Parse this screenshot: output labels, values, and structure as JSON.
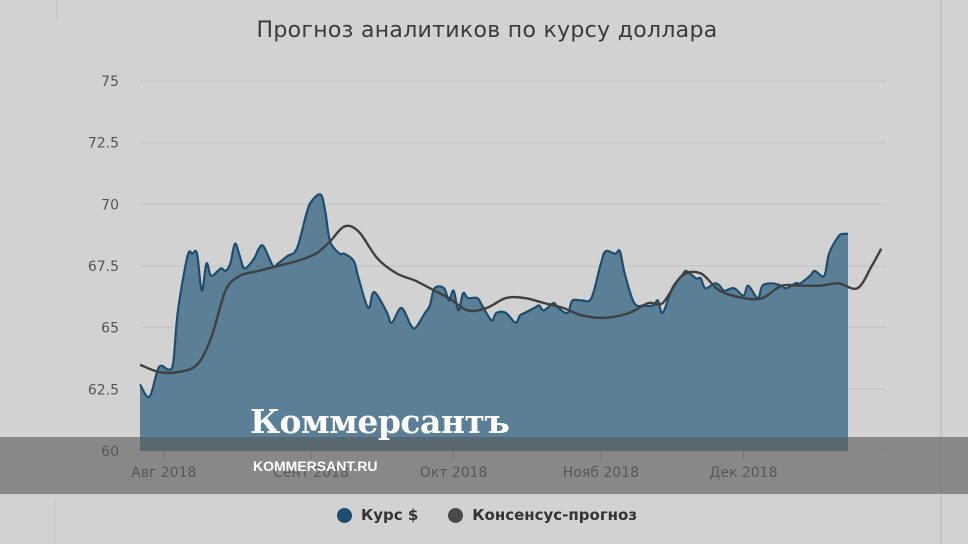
{
  "title": "Прогноз аналитиков по курсу доллара",
  "watermark": {
    "logo": "Коммерсантъ",
    "url": "KOMMERSANT.RU"
  },
  "colors": {
    "area_fill": "#5a7f97",
    "area_line": "#1e4d6e",
    "consensus_line": "#404040",
    "grid": "#c2c2c2",
    "axis_text": "#555555"
  },
  "legend": [
    {
      "label": "Курс $",
      "color": "#1e4d6e"
    },
    {
      "label": "Консенсус-прогноз",
      "color": "#4a4a4a"
    }
  ],
  "chart_data": {
    "type": "area",
    "title": "Прогноз аналитиков по курсу доллара",
    "ylim": [
      60,
      75
    ],
    "xlim": [
      "2018-07-27",
      "2018-12-31"
    ],
    "yticks": [
      60,
      62.5,
      65,
      67.5,
      70,
      72.5,
      75
    ],
    "ytick_labels": [
      "60",
      "62.5",
      "65",
      "67.5",
      "70",
      "72.5",
      "75"
    ],
    "xticks": [
      {
        "date": "2018-08-01",
        "label": "Авг 2018"
      },
      {
        "date": "2018-09-01",
        "label": "Сент 2018"
      },
      {
        "date": "2018-10-01",
        "label": "Окт 2018"
      },
      {
        "date": "2018-11-01",
        "label": "Нояб 2018"
      },
      {
        "date": "2018-12-01",
        "label": "Дек 2018"
      }
    ],
    "grid": true,
    "legend_position": "bottom",
    "series": [
      {
        "name": "Курс $",
        "type": "area",
        "x": [
          "2018-07-27",
          "2018-07-29",
          "2018-07-31",
          "2018-08-02",
          "2018-08-03",
          "2018-08-04",
          "2018-08-06",
          "2018-08-07",
          "2018-08-08",
          "2018-08-09",
          "2018-08-10",
          "2018-08-11",
          "2018-08-13",
          "2018-08-14",
          "2018-08-15",
          "2018-08-16",
          "2018-08-17",
          "2018-08-18",
          "2018-08-20",
          "2018-08-21",
          "2018-08-22",
          "2018-08-24",
          "2018-08-25",
          "2018-08-27",
          "2018-08-29",
          "2018-08-31",
          "2018-09-01",
          "2018-09-03",
          "2018-09-04",
          "2018-09-05",
          "2018-09-07",
          "2018-09-08",
          "2018-09-10",
          "2018-09-11",
          "2018-09-13",
          "2018-09-14",
          "2018-09-15",
          "2018-09-17",
          "2018-09-18",
          "2018-09-20",
          "2018-09-22",
          "2018-09-23",
          "2018-09-25",
          "2018-09-26",
          "2018-09-27",
          "2018-09-29",
          "2018-09-30",
          "2018-10-01",
          "2018-10-02",
          "2018-10-03",
          "2018-10-04",
          "2018-10-06",
          "2018-10-07",
          "2018-10-09",
          "2018-10-10",
          "2018-10-12",
          "2018-10-14",
          "2018-10-15",
          "2018-10-16",
          "2018-10-18",
          "2018-10-19",
          "2018-10-20",
          "2018-10-22",
          "2018-10-23",
          "2018-10-25",
          "2018-10-26",
          "2018-10-28",
          "2018-10-30",
          "2018-11-01",
          "2018-11-02",
          "2018-11-04",
          "2018-11-05",
          "2018-11-06",
          "2018-11-08",
          "2018-11-10",
          "2018-11-12",
          "2018-11-13",
          "2018-11-14",
          "2018-11-16",
          "2018-11-18",
          "2018-11-19",
          "2018-11-21",
          "2018-11-22",
          "2018-11-23",
          "2018-11-25",
          "2018-11-26",
          "2018-11-27",
          "2018-11-29",
          "2018-12-01",
          "2018-12-02",
          "2018-12-04",
          "2018-12-05",
          "2018-12-07",
          "2018-12-09",
          "2018-12-10",
          "2018-12-12",
          "2018-12-13",
          "2018-12-15",
          "2018-12-16",
          "2018-12-18",
          "2018-12-19",
          "2018-12-21",
          "2018-12-22",
          "2018-12-23"
        ],
        "values": [
          62.7,
          62.2,
          63.4,
          63.3,
          63.6,
          65.7,
          67.9,
          68.0,
          68.0,
          66.5,
          67.6,
          67.1,
          67.4,
          67.3,
          67.6,
          68.4,
          67.9,
          67.4,
          67.8,
          68.2,
          68.3,
          67.5,
          67.6,
          67.9,
          68.2,
          69.6,
          70.1,
          70.4,
          69.7,
          68.5,
          68.0,
          68.0,
          67.7,
          67.0,
          65.8,
          66.4,
          66.3,
          65.6,
          65.2,
          65.8,
          65.1,
          65.0,
          65.6,
          65.9,
          66.6,
          66.6,
          66.1,
          66.5,
          65.7,
          66.4,
          66.2,
          66.2,
          65.9,
          65.3,
          65.6,
          65.6,
          65.2,
          65.5,
          65.6,
          65.8,
          65.9,
          65.7,
          66.0,
          65.8,
          65.6,
          66.1,
          66.1,
          66.2,
          67.6,
          68.1,
          68.0,
          68.1,
          67.2,
          66.0,
          65.9,
          65.9,
          66.1,
          65.6,
          66.6,
          67.1,
          67.3,
          67.0,
          67.0,
          66.6,
          66.8,
          66.7,
          66.5,
          66.6,
          66.3,
          66.7,
          66.2,
          66.7,
          66.8,
          66.7,
          66.6,
          66.8,
          66.8,
          67.1,
          67.3,
          67.1,
          68.0,
          68.7,
          68.8,
          68.8
        ]
      },
      {
        "name": "Консенсус-прогноз",
        "type": "line",
        "x": [
          "2018-07-27",
          "2018-07-31",
          "2018-08-04",
          "2018-08-08",
          "2018-08-11",
          "2018-08-14",
          "2018-08-17",
          "2018-08-21",
          "2018-08-25",
          "2018-08-29",
          "2018-09-02",
          "2018-09-05",
          "2018-09-08",
          "2018-09-11",
          "2018-09-15",
          "2018-09-19",
          "2018-09-23",
          "2018-09-27",
          "2018-09-30",
          "2018-10-04",
          "2018-10-08",
          "2018-10-12",
          "2018-10-16",
          "2018-10-20",
          "2018-10-24",
          "2018-10-28",
          "2018-11-02",
          "2018-11-07",
          "2018-11-11",
          "2018-11-14",
          "2018-11-18",
          "2018-11-22",
          "2018-11-26",
          "2018-12-01",
          "2018-12-05",
          "2018-12-09",
          "2018-12-13",
          "2018-12-17",
          "2018-12-21",
          "2018-12-25",
          "2018-12-28",
          "2018-12-30"
        ],
        "values": [
          63.5,
          63.2,
          63.2,
          63.5,
          64.6,
          66.5,
          67.1,
          67.3,
          67.5,
          67.7,
          68.0,
          68.5,
          69.1,
          68.9,
          67.8,
          67.2,
          66.9,
          66.5,
          66.2,
          65.7,
          65.8,
          66.2,
          66.2,
          66.0,
          65.8,
          65.5,
          65.4,
          65.6,
          66.0,
          66.0,
          67.1,
          67.2,
          66.5,
          66.2,
          66.2,
          66.7,
          66.7,
          66.7,
          66.8,
          66.6,
          67.5,
          68.2
        ]
      }
    ]
  }
}
